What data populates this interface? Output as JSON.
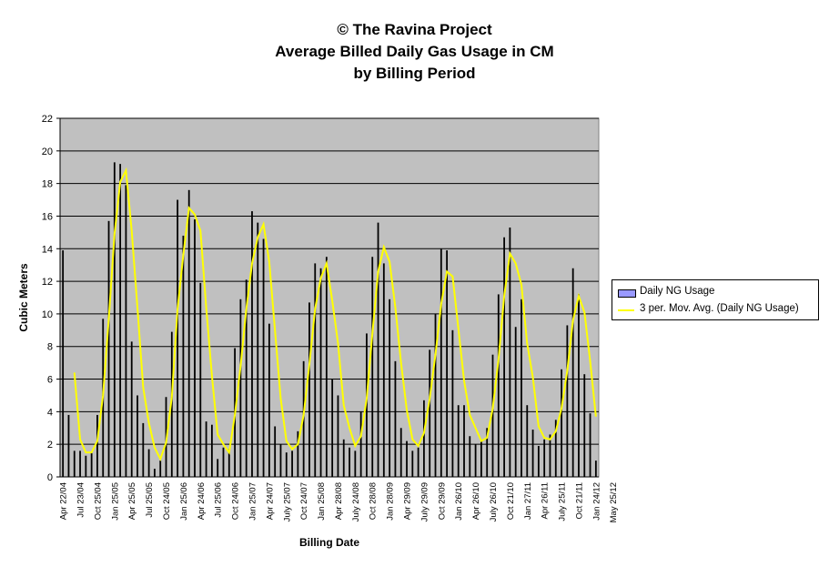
{
  "chart_data": {
    "type": "bar",
    "title_lines": [
      "© The Ravina Project",
      "Average Billed Daily Gas Usage in CM",
      "by Billing Period"
    ],
    "xlabel": "Billing Date",
    "ylabel": "Cubic Meters",
    "ylim": [
      0,
      22
    ],
    "yticks": [
      0,
      2,
      4,
      6,
      8,
      10,
      12,
      14,
      16,
      18,
      20,
      22
    ],
    "x_tick_labels": [
      "Apr 22/04",
      "Jul 23/04",
      "Oct 25/04",
      "Jan 25/05",
      "Apr 25/05",
      "Jul 25/05",
      "Oct 24/05",
      "Jan 25/06",
      "Apr 24/06",
      "Jul 25/06",
      "Oct 24/06",
      "Jan 25/07",
      "Apr 24/07",
      "July 25/07",
      "Oct 24/07",
      "Jan 25/08",
      "Apr 28/08",
      "July 24/08",
      "Oct 28/08",
      "Jan 28/09",
      "Apr 29/09",
      "July 29/09",
      "Oct 29/09",
      "Jan 26/10",
      "Apr 26/10",
      "July 26/10",
      "Oct 21/10",
      "Jan 27/11",
      "Apr 26/11",
      "July 25/11",
      "Oct 21/11",
      "Jan 24/12",
      "May 25/12"
    ],
    "grid": true,
    "legend_position": "right",
    "series": [
      {
        "name": "Daily NG Usage",
        "kind": "bar",
        "color": "#9999ff",
        "values": [
          13.9,
          3.8,
          1.6,
          1.6,
          1.3,
          1.5,
          3.8,
          9.7,
          15.7,
          19.3,
          19.2,
          17.9,
          8.3,
          5.0,
          3.3,
          1.7,
          0.5,
          1.0,
          4.9,
          8.9,
          17.0,
          14.8,
          17.6,
          15.8,
          11.9,
          3.4,
          3.2,
          1.1,
          1.8,
          1.7,
          7.9,
          10.9,
          12.1,
          16.3,
          15.6,
          14.6,
          9.4,
          3.1,
          2.0,
          1.5,
          1.6,
          2.8,
          7.1,
          10.7,
          13.1,
          12.8,
          13.5,
          6.0,
          5.0,
          2.3,
          1.8,
          1.6,
          4.0,
          8.8,
          13.5,
          15.6,
          13.1,
          10.9,
          7.1,
          3.0,
          2.2,
          1.6,
          1.8,
          4.7,
          7.8,
          10.0,
          14.0,
          13.9,
          9.0,
          4.4,
          4.4,
          2.5,
          2.0,
          2.2,
          3.0,
          7.5,
          11.2,
          14.7,
          15.3,
          9.2,
          10.9,
          4.4,
          2.9,
          1.9,
          2.3,
          2.6,
          3.5,
          6.6,
          9.3,
          12.8,
          11.2,
          6.3,
          3.9,
          1.0
        ]
      },
      {
        "name": "3 per. Mov. Avg. (Daily NG Usage)",
        "kind": "line",
        "color": "#ffff00",
        "values": [
          null,
          null,
          6.4,
          2.3,
          1.5,
          1.5,
          2.2,
          5.0,
          9.7,
          14.9,
          18.1,
          18.8,
          15.1,
          10.4,
          5.5,
          3.3,
          1.8,
          1.1,
          2.1,
          4.9,
          10.3,
          13.6,
          16.5,
          16.1,
          15.1,
          10.4,
          6.2,
          2.6,
          2.0,
          1.5,
          3.8,
          6.8,
          10.3,
          13.1,
          14.7,
          15.5,
          13.2,
          9.0,
          4.8,
          2.2,
          1.7,
          2.0,
          3.8,
          6.9,
          10.3,
          12.2,
          13.1,
          10.8,
          8.2,
          4.4,
          3.0,
          1.9,
          2.5,
          4.8,
          8.8,
          12.6,
          14.1,
          13.2,
          10.4,
          7.0,
          4.1,
          2.3,
          1.9,
          2.7,
          4.8,
          7.5,
          10.6,
          12.6,
          12.3,
          9.1,
          5.9,
          3.8,
          3.0,
          2.2,
          2.4,
          4.2,
          7.2,
          11.1,
          13.7,
          13.1,
          11.8,
          8.2,
          6.1,
          3.1,
          2.4,
          2.3,
          2.8,
          4.2,
          6.5,
          9.6,
          11.1,
          10.1,
          7.1,
          3.7
        ]
      }
    ]
  }
}
